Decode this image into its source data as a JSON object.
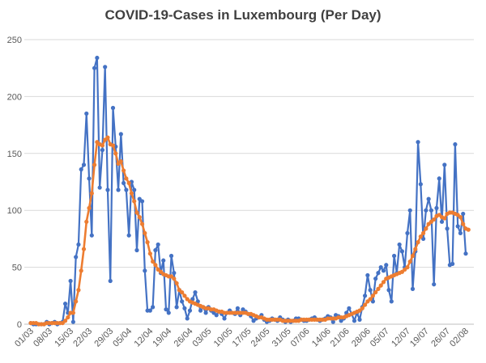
{
  "chart_data": {
    "type": "line",
    "title": "COVID-19-Cases in Luxembourg (Per Day)",
    "xlabel": "",
    "ylabel": "",
    "ylim": [
      0,
      250
    ],
    "y_ticks": [
      0,
      50,
      100,
      150,
      200,
      250
    ],
    "x_tick_labels": [
      "01/03",
      "08/03",
      "15/03",
      "22/03",
      "29/03",
      "05/04",
      "12/04",
      "19/04",
      "26/04",
      "03/05",
      "10/05",
      "17/05",
      "24/05",
      "31/05",
      "07/06",
      "14/06",
      "21/06",
      "28/06",
      "05/07",
      "12/07",
      "19/07",
      "26/07",
      "02/08"
    ],
    "grid": "horizontal",
    "legend": "none",
    "x_start": "01/03",
    "x_end": "02/08",
    "series": [
      {
        "color": "#4472C4",
        "marker": "circle",
        "values": [
          1,
          0,
          0,
          0,
          0,
          0,
          2,
          0,
          1,
          2,
          0,
          1,
          2,
          18,
          10,
          38,
          2,
          59,
          70,
          136,
          140,
          185,
          128,
          78,
          225,
          234,
          120,
          153,
          226,
          118,
          38,
          190,
          156,
          118,
          167,
          124,
          118,
          78,
          125,
          118,
          65,
          110,
          108,
          47,
          12,
          12,
          15,
          65,
          70,
          45,
          56,
          13,
          10,
          60,
          45,
          15,
          30,
          20,
          14,
          5,
          12,
          22,
          28,
          20,
          12,
          15,
          10,
          15,
          12,
          10,
          8,
          11,
          9,
          5,
          10,
          12,
          10,
          9,
          14,
          8,
          13,
          11,
          9,
          7,
          3,
          5,
          6,
          8,
          4,
          2,
          3,
          5,
          4,
          3,
          6,
          4,
          2,
          4,
          2,
          3,
          5,
          5,
          4,
          3,
          3,
          4,
          5,
          6,
          4,
          3,
          4,
          5,
          7,
          6,
          2,
          8,
          7,
          3,
          5,
          10,
          14,
          9,
          3,
          10,
          4,
          15,
          25,
          43,
          30,
          20,
          40,
          45,
          50,
          47,
          52,
          30,
          20,
          60,
          45,
          70,
          64,
          50,
          80,
          100,
          31,
          64,
          160,
          123,
          75,
          100,
          110,
          100,
          35,
          102,
          128,
          90,
          140,
          84,
          52,
          53,
          158,
          86,
          80,
          97,
          62
        ]
      },
      {
        "color": "#ED7D31",
        "marker": "circle",
        "values": [
          1,
          1,
          1,
          0,
          0,
          0,
          1,
          1,
          1,
          1,
          1,
          1,
          1,
          3,
          6,
          10,
          10,
          20,
          30,
          47,
          66,
          90,
          102,
          115,
          140,
          160,
          158,
          157,
          162,
          164,
          158,
          157,
          150,
          141,
          143,
          135,
          128,
          124,
          115,
          108,
          98,
          94,
          88,
          80,
          72,
          62,
          55,
          52,
          48,
          46,
          44,
          43,
          42,
          42,
          40,
          36,
          30,
          28,
          25,
          22,
          20,
          19,
          18,
          17,
          16,
          15,
          14,
          14,
          13,
          13,
          12,
          11,
          11,
          10,
          10,
          10,
          10,
          10,
          10,
          10,
          10,
          10,
          9,
          9,
          8,
          7,
          6,
          6,
          5,
          4,
          4,
          4,
          4,
          4,
          4,
          3,
          3,
          3,
          3,
          3,
          3,
          3,
          4,
          4,
          4,
          4,
          4,
          4,
          4,
          4,
          4,
          4,
          5,
          5,
          5,
          5,
          6,
          6,
          6,
          7,
          8,
          9,
          10,
          11,
          12,
          14,
          17,
          20,
          22,
          25,
          28,
          31,
          34,
          37,
          40,
          41,
          42,
          43,
          44,
          45,
          46,
          48,
          50,
          55,
          60,
          66,
          72,
          77,
          80,
          84,
          88,
          90,
          92,
          95,
          96,
          94,
          93,
          97,
          98,
          98,
          97,
          96,
          94,
          88,
          84,
          83
        ]
      }
    ]
  }
}
